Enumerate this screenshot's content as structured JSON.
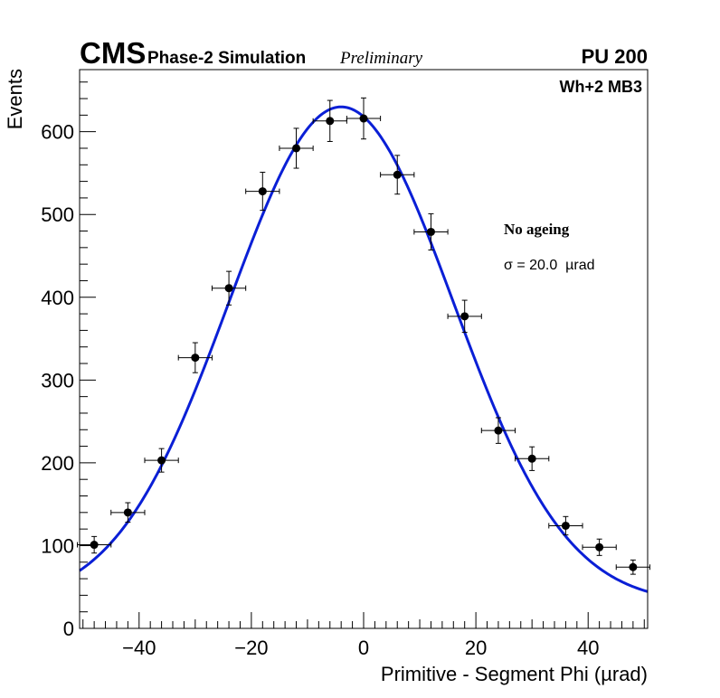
{
  "header": {
    "experiment": "CMS",
    "subtitle": "Phase-2 Simulation",
    "status": "Preliminary",
    "pileup": "PU 200",
    "station": "Wh+2 MB3"
  },
  "annotations": {
    "ageing": "No ageing",
    "sigma": "σ = 20.0  µrad"
  },
  "chart_data": {
    "type": "scatter",
    "title": "",
    "xlabel": "Primitive - Segment Phi (µrad)",
    "ylabel": "Events",
    "xlim": [
      -50.6,
      50.6
    ],
    "ylim": [
      0,
      675
    ],
    "x_ticks": [
      -40,
      -20,
      0,
      20,
      40
    ],
    "x_tick_labels": [
      "−40",
      "−20",
      "0",
      "20",
      "40"
    ],
    "y_ticks": [
      0,
      100,
      200,
      300,
      400,
      500,
      600
    ],
    "y_tick_labels": [
      "0",
      "100",
      "200",
      "300",
      "400",
      "500",
      "600"
    ],
    "x_bin_halfwidth": 3,
    "series": [
      {
        "name": "Events",
        "style": "points-with-errors",
        "color": "#000000",
        "x": [
          -48,
          -42,
          -36,
          -30,
          -24,
          -18,
          -12,
          -6,
          0,
          6,
          12,
          18,
          24,
          30,
          36,
          42,
          48
        ],
        "y": [
          101,
          140,
          203,
          327,
          411,
          528,
          580,
          613,
          616,
          548,
          479,
          377,
          239,
          205,
          124,
          98,
          74
        ],
        "yerr": [
          10,
          11.8,
          14.2,
          18.1,
          20.3,
          23,
          24.1,
          24.8,
          24.8,
          23.4,
          21.9,
          19.4,
          15.5,
          14.3,
          11.1,
          9.9,
          8.6
        ]
      },
      {
        "name": "Gaussian fit",
        "style": "line",
        "color": "#0a1fd6",
        "fit": {
          "constant": 630,
          "mean": -4.0,
          "sigma": 20.0,
          "baseline": 30
        }
      }
    ]
  }
}
